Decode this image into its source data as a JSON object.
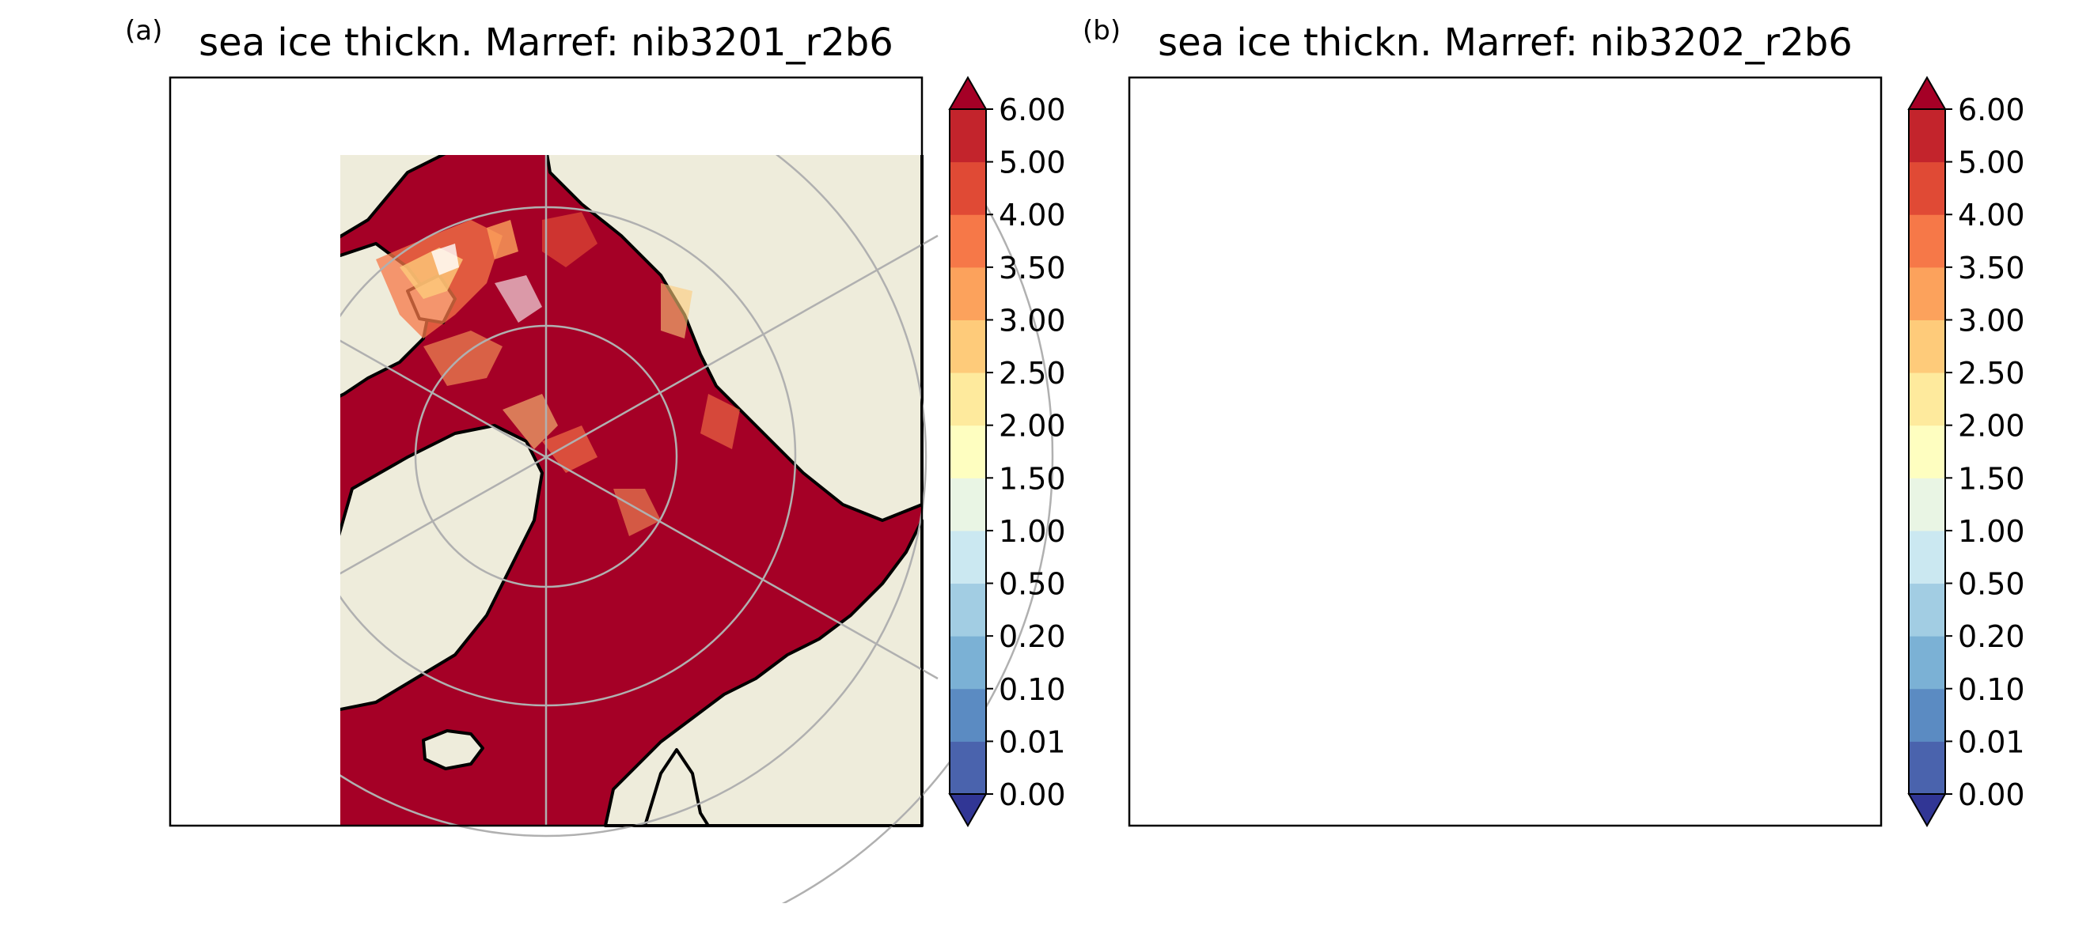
{
  "figure": {
    "panels": [
      {
        "panel_label": "(a)",
        "title": "sea ice thickn. Marref: nib3201_r2b6"
      },
      {
        "panel_label": "(b)",
        "title": "sea ice thickn. Marref: nib3202_r2b6"
      }
    ],
    "colorbar": {
      "tick_labels": [
        "0.00",
        "0.01",
        "0.10",
        "0.20",
        "0.50",
        "1.00",
        "1.50",
        "2.00",
        "2.50",
        "3.00",
        "3.50",
        "4.00",
        "5.00",
        "6.00"
      ],
      "colors": [
        "#4a63ad",
        "#5b8bc2",
        "#7bb1d5",
        "#a2cde3",
        "#cbe8f1",
        "#e9f5e4",
        "#fefec0",
        "#feea9d",
        "#fecb7a",
        "#fca25c",
        "#f67848",
        "#e04a35",
        "#c3242c"
      ],
      "under_color": "#313695",
      "over_color": "#a50026"
    },
    "map_colors": {
      "ocean_ice": "#a50026",
      "land": "#eeecdb",
      "graticule": "#b0b0b0",
      "coastline": "#000000"
    }
  }
}
